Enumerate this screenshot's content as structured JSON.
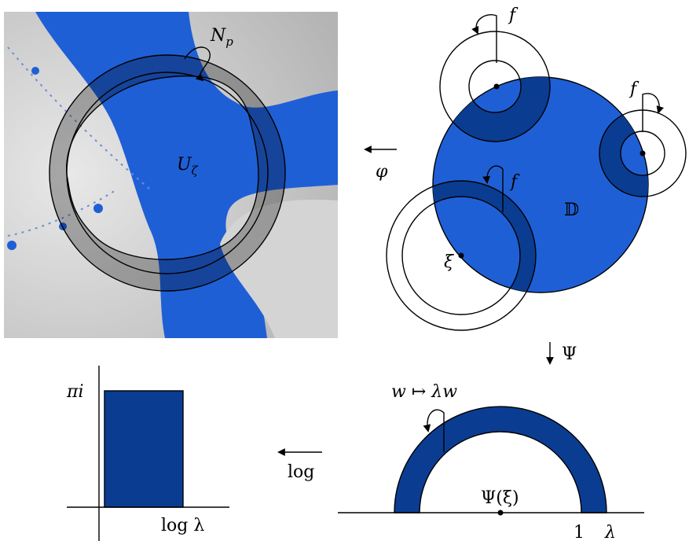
{
  "fractal": {
    "annulus_label": {
      "base": "N",
      "sub": "p"
    },
    "domain_label": {
      "base": "U",
      "sub": "ζ"
    }
  },
  "disk": {
    "label": "𝔻",
    "point_label": "ξ",
    "map_labels": [
      "f",
      "f",
      "f"
    ]
  },
  "arrows": {
    "phi": "φ",
    "psi": "Ψ",
    "log": "log"
  },
  "half_annulus": {
    "map_label": "w ↦ λw",
    "center_label": "Ψ(ξ)",
    "one": "1",
    "lambda": "λ"
  },
  "rectangle": {
    "height_label": "πi",
    "width_label": "log λ"
  }
}
